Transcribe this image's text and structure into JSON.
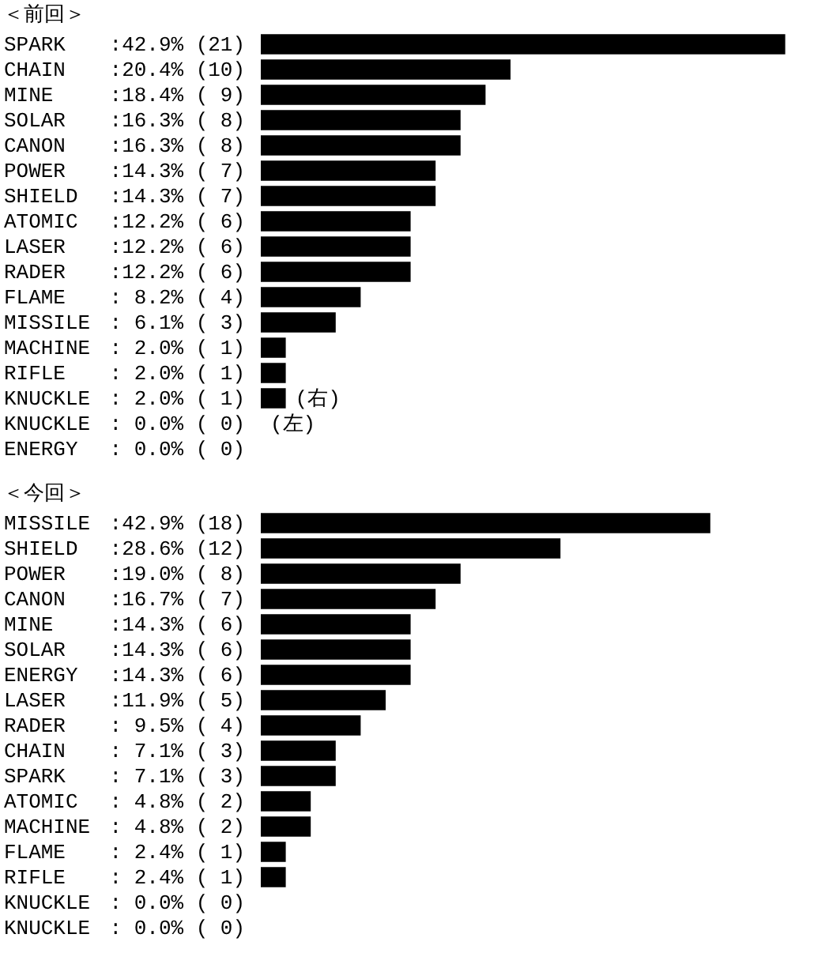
{
  "chart_data": [
    {
      "type": "bar",
      "orientation": "horizontal",
      "title": "＜前回＞",
      "color": "#000000",
      "tick_labels": "y",
      "categories": [
        "SPARK",
        "CHAIN",
        "MINE",
        "SOLAR",
        "CANON",
        "POWER",
        "SHIELD",
        "ATOMIC",
        "LASER",
        "RADER",
        "FLAME",
        "MISSILE",
        "MACHINE",
        "RIFLE",
        "KNUCKLE",
        "KNUCKLE",
        "ENERGY"
      ],
      "values": [
        21,
        10,
        9,
        8,
        8,
        7,
        7,
        6,
        6,
        6,
        4,
        3,
        1,
        1,
        1,
        0,
        0
      ],
      "value_labels": [
        ":42.9% (21)",
        ":20.4% (10)",
        ":18.4% ( 9)",
        ":16.3% ( 8)",
        ":16.3% ( 8)",
        ":14.3% ( 7)",
        ":14.3% ( 7)",
        ":12.2% ( 6)",
        ":12.2% ( 6)",
        ":12.2% ( 6)",
        ": 8.2% ( 4)",
        ": 6.1% ( 3)",
        ": 2.0% ( 1)",
        ": 2.0% ( 1)",
        ": 2.0% ( 1)",
        ": 0.0% ( 0)",
        ": 0.0% ( 0)"
      ],
      "annotations": [
        {
          "text": "(右)",
          "x": 1,
          "y": "KNUCKLE"
        },
        {
          "text": "(左)",
          "x": 0,
          "y": "KNUCKLE"
        }
      ]
    },
    {
      "type": "bar",
      "orientation": "horizontal",
      "title": "＜今回＞",
      "color": "#000000",
      "tick_labels": "y",
      "categories": [
        "MISSILE",
        "SHIELD",
        "POWER",
        "CANON",
        "MINE",
        "SOLAR",
        "ENERGY",
        "LASER",
        "RADER",
        "CHAIN",
        "SPARK",
        "ATOMIC",
        "MACHINE",
        "FLAME",
        "RIFLE",
        "KNUCKLE",
        "KNUCKLE"
      ],
      "values": [
        18,
        12,
        8,
        7,
        6,
        6,
        6,
        5,
        4,
        3,
        3,
        2,
        2,
        1,
        1,
        0,
        0
      ],
      "value_labels": [
        ":42.9% (18)",
        ":28.6% (12)",
        ":19.0% ( 8)",
        ":16.7% ( 7)",
        ":14.3% ( 6)",
        ":14.3% ( 6)",
        ":14.3% ( 6)",
        ":11.9% ( 5)",
        ": 9.5% ( 4)",
        ": 7.1% ( 3)",
        ": 7.1% ( 3)",
        ": 4.8% ( 2)",
        ": 4.8% ( 2)",
        ": 2.4% ( 1)",
        ": 2.4% ( 1)",
        ": 0.0% ( 0)",
        ": 0.0% ( 0)"
      ]
    }
  ]
}
